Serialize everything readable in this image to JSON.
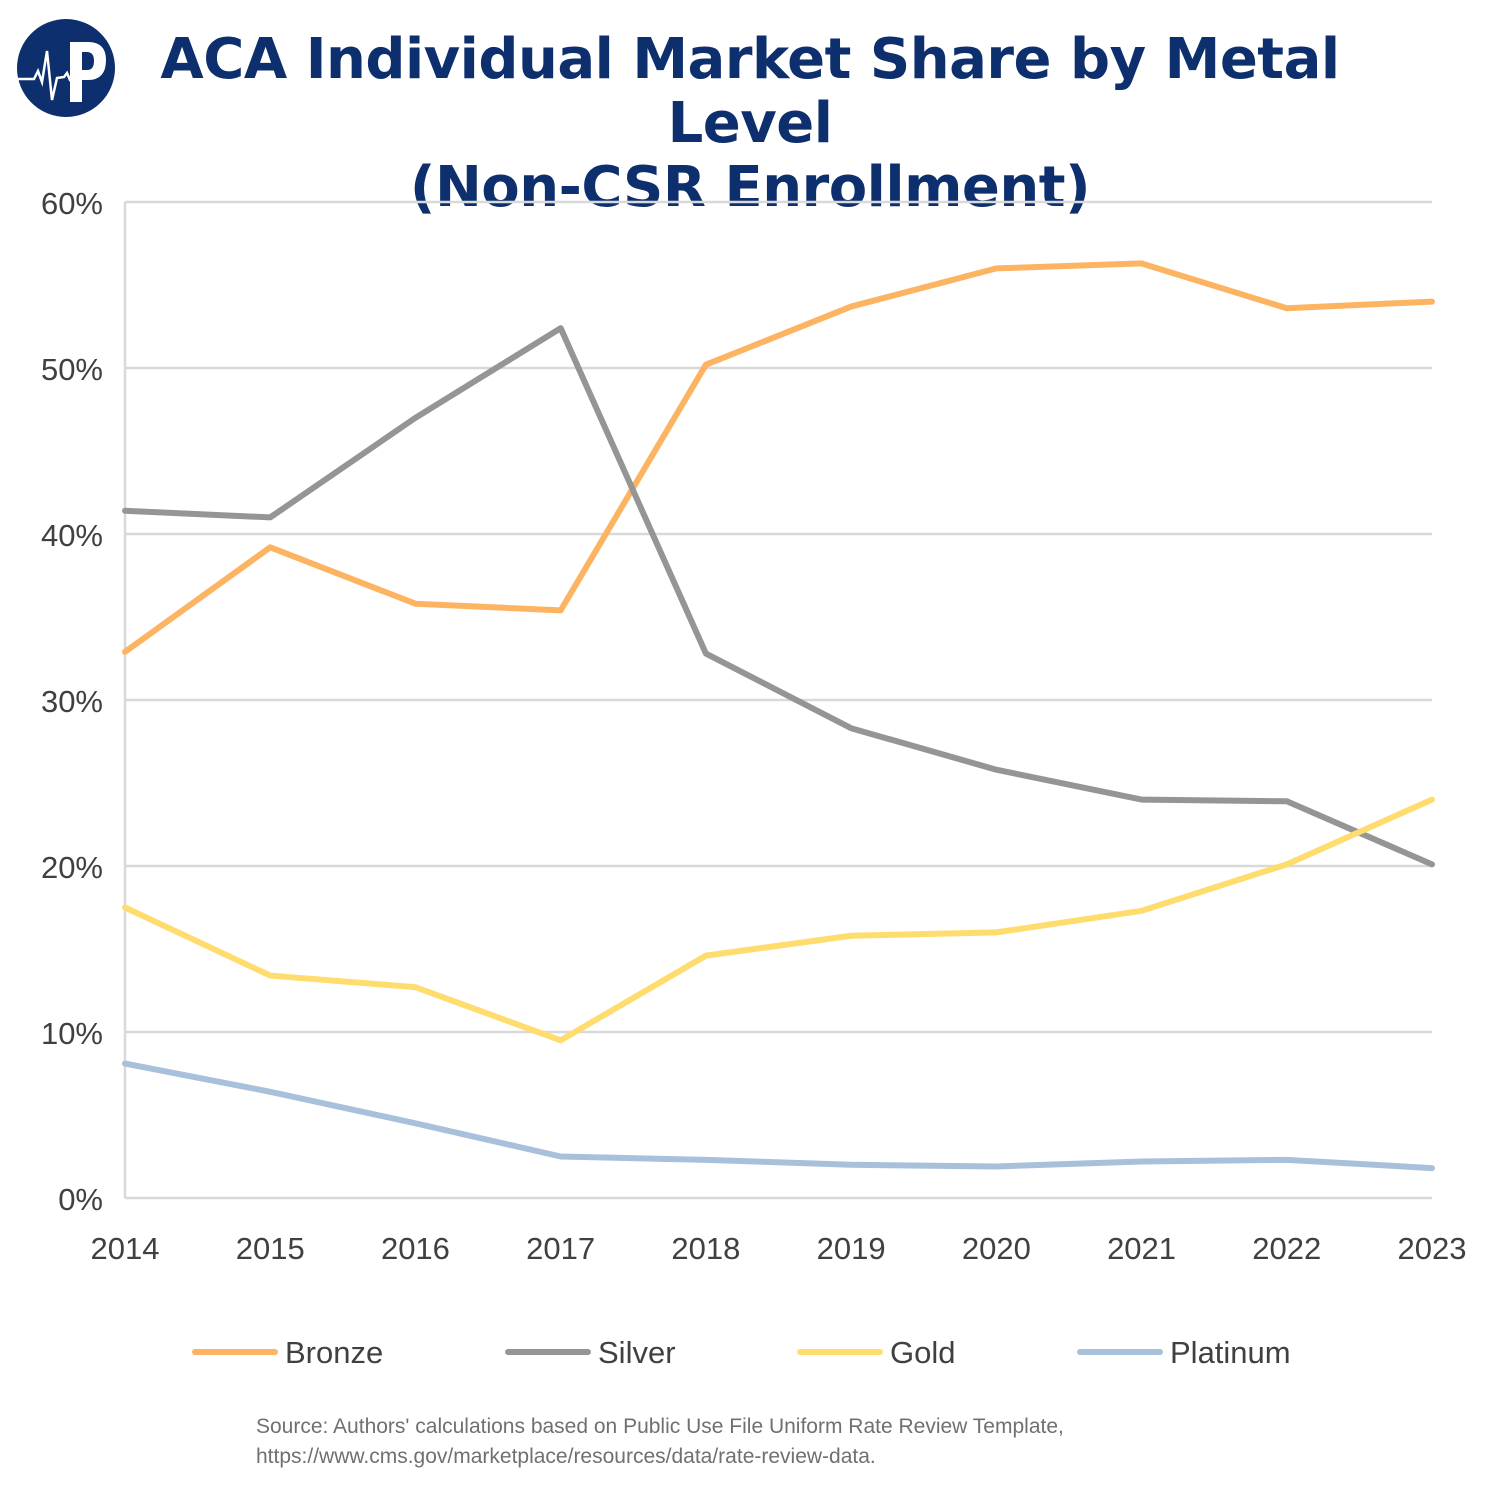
{
  "logo": {
    "text": "P",
    "color": "#0d2f6e"
  },
  "chart_data": {
    "type": "line",
    "title": "ACA Individual Market Share by Metal Level",
    "subtitle": "(Non-CSR Enrollment)",
    "x": [
      "2014",
      "2015",
      "2016",
      "2017",
      "2018",
      "2019",
      "2020",
      "2021",
      "2022",
      "2023"
    ],
    "ylim": [
      0,
      60
    ],
    "yticks": [
      0,
      10,
      20,
      30,
      40,
      50,
      60
    ],
    "ytick_labels": [
      "0%",
      "10%",
      "20%",
      "30%",
      "40%",
      "50%",
      "60%"
    ],
    "grid": true,
    "legend": "bottom",
    "series": [
      {
        "name": "Bronze",
        "color": "#fdb462",
        "values": [
          32.9,
          39.2,
          35.8,
          35.4,
          50.2,
          53.7,
          56.0,
          56.3,
          53.6,
          54.0
        ]
      },
      {
        "name": "Silver",
        "color": "#959595",
        "values": [
          41.4,
          41.0,
          47.0,
          52.4,
          32.8,
          28.3,
          25.8,
          24.0,
          23.9,
          20.1
        ]
      },
      {
        "name": "Gold",
        "color": "#fedc6e",
        "values": [
          17.5,
          13.4,
          12.7,
          9.5,
          14.6,
          15.8,
          16.0,
          17.3,
          20.1,
          24.0
        ]
      },
      {
        "name": "Platinum",
        "color": "#a8c0da",
        "values": [
          8.1,
          6.4,
          4.5,
          2.5,
          2.3,
          2.0,
          1.9,
          2.2,
          2.3,
          1.8
        ]
      }
    ]
  },
  "source": {
    "line1": "Source: Authors' calculations based on Public Use File Uniform Rate Review Template,",
    "line2": "https://www.cms.gov/marketplace/resources/data/rate-review-data."
  }
}
